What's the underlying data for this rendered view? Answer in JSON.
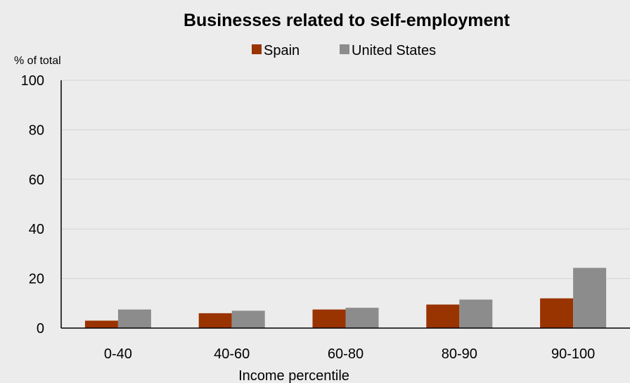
{
  "chart_data": {
    "type": "bar",
    "title": "Businesses related to self-employment",
    "ylabel": "% of total",
    "xlabel": "Income percentile",
    "categories": [
      "0-40",
      "40-60",
      "60-80",
      "80-90",
      "90-100"
    ],
    "series": [
      {
        "name": "Spain",
        "color": "#993300",
        "values": [
          3,
          6,
          7.5,
          9.5,
          12
        ]
      },
      {
        "name": "United States",
        "color": "#8c8c8c",
        "values": [
          7.5,
          7,
          8.2,
          11.5,
          24.3
        ]
      }
    ],
    "ylim": [
      0,
      100
    ],
    "yticks": [
      "0",
      "20",
      "40",
      "60",
      "80",
      "100"
    ],
    "grid": true,
    "legend_position": "top"
  }
}
